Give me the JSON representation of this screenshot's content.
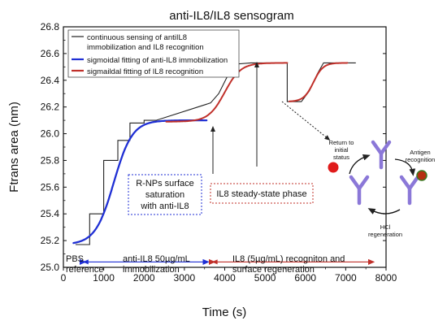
{
  "chart_data": {
    "type": "line",
    "title": "anti-IL8/IL8 sensogram",
    "xlabel": "Time (s)",
    "ylabel": "Ftrans area (nm)",
    "xlim": [
      0,
      8000
    ],
    "ylim": [
      25.0,
      26.8
    ],
    "xticks": [
      0,
      1000,
      2000,
      3000,
      4000,
      5000,
      6000,
      7000,
      8000
    ],
    "yticks": [
      25.0,
      25.2,
      25.4,
      25.6,
      25.8,
      26.0,
      26.2,
      26.4,
      26.6,
      26.8
    ],
    "grid": false,
    "legend": {
      "placement": "top-left",
      "entries": [
        "continuous sensing of antiIL8 immobilization and IL8 recognition",
        "sigmoidal fitting of anti-IL8 immobilization",
        "sigmaildal fitting of IL8 recognition"
      ]
    },
    "series": [
      {
        "name": "continuous sensing of antiIL8 immobilization and IL8 recognition",
        "color": "#222222",
        "style": "step",
        "x": [
          300,
          650,
          650,
          1000,
          1000,
          1350,
          1350,
          1650,
          1650,
          2000,
          2000,
          2300,
          2300,
          3650,
          3650,
          3850,
          3850,
          4050,
          4050,
          4250,
          4250,
          4650,
          4650,
          5550,
          5550,
          5900,
          5900,
          6100,
          6100,
          6300,
          6300,
          6450,
          6450,
          7250
        ],
        "y": [
          25.17,
          25.17,
          25.4,
          25.4,
          25.8,
          25.8,
          25.95,
          25.95,
          26.08,
          26.08,
          26.1,
          26.1,
          26.1,
          26.23,
          26.23,
          26.3,
          26.3,
          26.42,
          26.42,
          26.52,
          26.52,
          26.53,
          26.53,
          26.53,
          26.24,
          26.24,
          26.24,
          26.32,
          26.32,
          26.45,
          26.45,
          26.53,
          26.53,
          26.53
        ]
      },
      {
        "name": "sigmoidal fitting of anti-IL8 immobilization",
        "color": "#1f2fd4",
        "style": "sigmoid",
        "x_range": [
          250,
          3550
        ],
        "base": 25.17,
        "top": 26.1,
        "midpoint": 1250,
        "width": 230
      },
      {
        "name": "sigmaildal fitting of IL8 recognition",
        "color": "#c0302a",
        "segments": [
          {
            "x_range": [
              2550,
              5550
            ],
            "base": 26.09,
            "top": 26.53,
            "midpoint": 4000,
            "width": 200
          },
          {
            "x_range": [
              5600,
              7050
            ],
            "base": 26.24,
            "top": 26.53,
            "midpoint": 6200,
            "width": 120
          }
        ]
      }
    ],
    "annotations": [
      {
        "text": "R-NPs surface saturation with anti-IL8",
        "box": "dotted-blue"
      },
      {
        "text": "IL8 steady-state phase",
        "box": "dotted-red"
      },
      {
        "text": "PBS reference"
      },
      {
        "text": "anti-IL8  50µg/mL immobilization"
      },
      {
        "text": "IL8 (5µg/mL) recogniton and surface regeneration"
      }
    ],
    "phases": [
      {
        "range": [
          500,
          3550
        ],
        "color": "#1f2fd4"
      },
      {
        "range": [
          3700,
          7650
        ],
        "color": "#c0302a"
      }
    ],
    "inset": {
      "labels": [
        "Return to initial status",
        "Antigen recognition",
        "HCl regeneration"
      ]
    }
  },
  "labels": {
    "title": "anti-IL8/IL8 sensogram",
    "xlabel": "Time (s)",
    "ylabel": "Ftrans area (nm)",
    "legend_1_line1": "continuous sensing of antiIL8",
    "legend_1_line2": "immobilization and IL8 recognition",
    "legend_2": "sigmoidal fitting of anti-IL8 immobilization",
    "legend_3": "sigmaildal fitting of IL8 recognition",
    "box_blue_1": "R-NPs surface",
    "box_blue_2": "saturation",
    "box_blue_3": "with anti-IL8",
    "box_red": "IL8 steady-state phase",
    "pbs_1": "PBS",
    "pbs_2": "reference",
    "anti_1": "anti-IL8  50µg/mL",
    "anti_2": "immobilization",
    "il8_1": "IL8 (5µg/mL) recogniton and",
    "il8_2": "surface regeneration",
    "inset_return_1": "Return to",
    "inset_return_2": "initial",
    "inset_return_3": "status",
    "inset_antigen_1": "Antigen",
    "inset_antigen_2": "recognition",
    "inset_hcl_1": "HCl",
    "inset_hcl_2": "regeneration"
  }
}
